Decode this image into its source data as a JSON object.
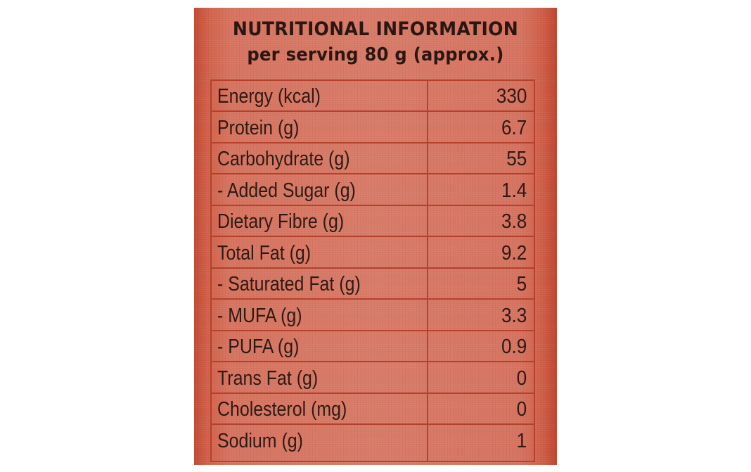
{
  "title": "NUTRITIONAL INFORMATION",
  "serving": "per serving 80 g (approx.)",
  "rows": [
    {
      "label": "Energy (kcal)",
      "value": "330"
    },
    {
      "label": "Protein (g)",
      "value": "6.7"
    },
    {
      "label": "Carbohydrate (g)",
      "value": "55"
    },
    {
      "label": "- Added Sugar (g)",
      "value": "1.4"
    },
    {
      "label": "Dietary Fibre (g)",
      "value": "3.8"
    },
    {
      "label": "Total Fat (g)",
      "value": "9.2"
    },
    {
      "label": "- Saturated Fat (g)",
      "value": "5"
    },
    {
      "label": "- MUFA (g)",
      "value": "3.3"
    },
    {
      "label": "- PUFA (g)",
      "value": "0.9"
    },
    {
      "label": "Trans Fat (g)",
      "value": "0"
    },
    {
      "label": "Cholesterol (mg)",
      "value": "0"
    },
    {
      "label": "Sodium (g)",
      "value": "1"
    }
  ],
  "colors": {
    "panel": "#d87b68",
    "lines": "#b5402c",
    "text": "#2e1a14"
  }
}
